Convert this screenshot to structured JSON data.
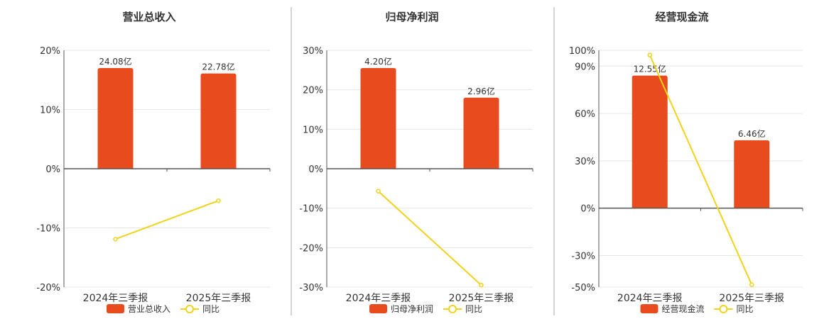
{
  "colors": {
    "bar": "#e84c1e",
    "line": "#f2d21a",
    "divider": "#aaaaaa",
    "grid": "#e6e6e6",
    "axis": "#555555"
  },
  "chart_data": [
    {
      "type": "bar",
      "title": "营业总收入",
      "categories": [
        "2024年三季报",
        "2025年三季报"
      ],
      "series": [
        {
          "name": "营业总收入",
          "type": "bar",
          "values": [
            17.0,
            16.1
          ],
          "data_labels": [
            "24.08亿",
            "22.78亿"
          ]
        },
        {
          "name": "同比",
          "type": "line",
          "values": [
            -11.9,
            -5.4
          ]
        }
      ],
      "ylim": [
        -20,
        20
      ],
      "yticks": [
        -20,
        -10,
        0,
        10,
        20
      ],
      "ytick_labels": [
        "-20%",
        "-10%",
        "0%",
        "10%",
        "20%"
      ],
      "grid": true,
      "legend": "bottom"
    },
    {
      "type": "bar",
      "title": "归母净利润",
      "categories": [
        "2024年三季报",
        "2025年三季报"
      ],
      "series": [
        {
          "name": "归母净利润",
          "type": "bar",
          "values": [
            25.5,
            18.0
          ],
          "data_labels": [
            "4.20亿",
            "2.96亿"
          ]
        },
        {
          "name": "同比",
          "type": "line",
          "values": [
            -5.7,
            -29.5
          ]
        }
      ],
      "ylim": [
        -30,
        30
      ],
      "yticks": [
        -30,
        -20,
        -10,
        0,
        10,
        20,
        30
      ],
      "ytick_labels": [
        "-30%",
        "-20%",
        "-10%",
        "0%",
        "10%",
        "20%",
        "30%"
      ],
      "grid": true,
      "legend": "bottom"
    },
    {
      "type": "bar",
      "title": "经营现金流",
      "categories": [
        "2024年三季报",
        "2025年三季报"
      ],
      "series": [
        {
          "name": "经营现金流",
          "type": "bar",
          "values": [
            84.0,
            43.0
          ],
          "data_labels": [
            "12.55亿",
            "6.46亿"
          ]
        },
        {
          "name": "同比",
          "type": "line",
          "values": [
            97.0,
            -48.5
          ]
        }
      ],
      "ylim": [
        -50,
        100
      ],
      "yticks": [
        -50,
        -30,
        0,
        30,
        60,
        90,
        100
      ],
      "ytick_labels": [
        "-50%",
        "-30%",
        "0%",
        "30%",
        "60%",
        "90%",
        "100%"
      ],
      "grid": true,
      "legend": "bottom"
    }
  ]
}
